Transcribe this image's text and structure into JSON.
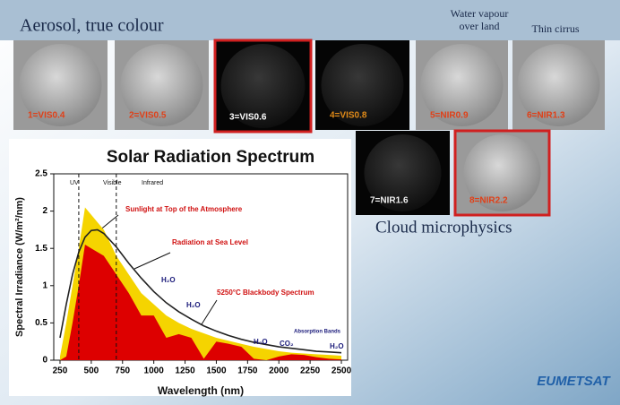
{
  "header": {
    "title": "Aerosol, true colour",
    "water_vapour": "Water vapour over land",
    "thin_cirrus": "Thin cirrus",
    "cloud": "Cloud microphysics",
    "logo": "EUMETSAT"
  },
  "images": [
    {
      "label": "1=VIS0.4"
    },
    {
      "label": "2=VIS0.5"
    },
    {
      "label": "3=VIS0.6"
    },
    {
      "label": "4=VIS0.8"
    },
    {
      "label": "5=NIR0.9"
    },
    {
      "label": "6=NIR1.3"
    },
    {
      "label": "7=NIR1.6"
    },
    {
      "label": "8=NIR2.2"
    }
  ],
  "chart_data": {
    "type": "area",
    "title": "Solar Radiation Spectrum",
    "x_label": "Wavelength (nm)",
    "y_label": "Spectral Irradiance (W/m²/nm)",
    "x": [
      250,
      300,
      350,
      400,
      450,
      500,
      550,
      600,
      700,
      800,
      900,
      1000,
      1100,
      1200,
      1300,
      1400,
      1500,
      1600,
      1700,
      1800,
      1900,
      2000,
      2100,
      2200,
      2300,
      2400,
      2500
    ],
    "series": [
      {
        "name": "Sunlight at Top of the Atmosphere",
        "color": "#f5d400",
        "kind": "area",
        "values": [
          0.05,
          0.5,
          1.0,
          1.5,
          2.05,
          1.95,
          1.85,
          1.75,
          1.4,
          1.15,
          0.9,
          0.75,
          0.6,
          0.5,
          0.42,
          0.36,
          0.3,
          0.26,
          0.22,
          0.18,
          0.15,
          0.12,
          0.1,
          0.09,
          0.08,
          0.07,
          0.06
        ]
      },
      {
        "name": "Radiation at Sea Level",
        "color": "#dd0000",
        "kind": "area",
        "values": [
          0,
          0.05,
          0.5,
          1.0,
          1.55,
          1.5,
          1.45,
          1.4,
          1.15,
          0.9,
          0.6,
          0.6,
          0.3,
          0.35,
          0.3,
          0.02,
          0.25,
          0.22,
          0.18,
          0.02,
          0,
          0.05,
          0.08,
          0.07,
          0.04,
          0.02,
          0.01
        ]
      },
      {
        "name": "5250°C Blackbody Spectrum",
        "color": "#222222",
        "kind": "line",
        "values": [
          0.3,
          0.75,
          1.15,
          1.45,
          1.65,
          1.74,
          1.75,
          1.7,
          1.52,
          1.3,
          1.1,
          0.92,
          0.77,
          0.65,
          0.55,
          0.46,
          0.39,
          0.33,
          0.28,
          0.24,
          0.21,
          0.18,
          0.16,
          0.14,
          0.12,
          0.11,
          0.1
        ]
      }
    ],
    "dividers": [
      400,
      700
    ],
    "regions": [
      "UV",
      "Visible",
      "Infrared"
    ],
    "absorption": [
      "H₂O",
      "H₂O",
      "H₂O",
      "CO₂",
      "H₂O",
      "Absorption Bands"
    ],
    "xlim": [
      200,
      2550
    ],
    "ylim": [
      0,
      2.5
    ],
    "xticks": [
      250,
      500,
      750,
      1000,
      1250,
      1500,
      1750,
      2000,
      2250,
      2500
    ],
    "yticks": [
      0,
      0.5,
      1,
      1.5,
      2,
      2.5
    ]
  }
}
